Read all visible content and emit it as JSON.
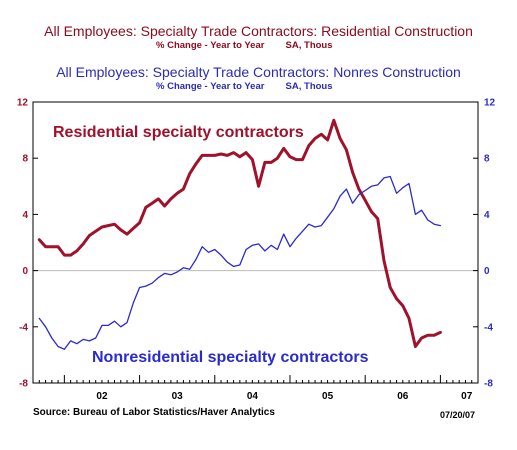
{
  "header": {
    "title_residential": "All Employees: Specialty Trade Contractors: Residential Construction",
    "subtitle_residential": "% Change - Year to Year        SA, Thous",
    "title_nonres": "All Employees: Specialty Trade Contractors: Nonres Construction",
    "subtitle_nonres": "% Change - Year to Year        SA, Thous"
  },
  "footer": {
    "source": "Source:  Bureau of Labor Statistics/Haver Analytics",
    "date": "07/20/07"
  },
  "colors": {
    "residential": "#a0112b",
    "nonresidential": "#2b2bcc",
    "axis": "#000000",
    "zero_line": "#bbbbbb"
  },
  "chart_data": {
    "type": "line",
    "ylim": [
      -8,
      12
    ],
    "yticks": [
      -8,
      -4,
      0,
      4,
      8,
      12
    ],
    "xlim": [
      2001.583,
      2007.5
    ],
    "x_tick_labels": [
      "02",
      "03",
      "04",
      "05",
      "06",
      "07"
    ],
    "grid": false,
    "annotations": [
      {
        "text": "Residential specialty contractors",
        "series": "Residential"
      },
      {
        "text": "Nonresidential specialty contractors",
        "series": "Nonresidential"
      }
    ],
    "series": [
      {
        "name": "Residential",
        "color": "#a0112b",
        "points": [
          [
            2001.667,
            2.2
          ],
          [
            2001.75,
            1.7
          ],
          [
            2001.833,
            1.7
          ],
          [
            2001.917,
            1.7
          ],
          [
            2002.0,
            1.1
          ],
          [
            2002.083,
            1.1
          ],
          [
            2002.167,
            1.4
          ],
          [
            2002.25,
            1.9
          ],
          [
            2002.333,
            2.5
          ],
          [
            2002.417,
            2.8
          ],
          [
            2002.5,
            3.1
          ],
          [
            2002.583,
            3.2
          ],
          [
            2002.667,
            3.3
          ],
          [
            2002.75,
            2.9
          ],
          [
            2002.833,
            2.6
          ],
          [
            2002.917,
            3.0
          ],
          [
            2003.0,
            3.4
          ],
          [
            2003.083,
            4.5
          ],
          [
            2003.167,
            4.8
          ],
          [
            2003.25,
            5.1
          ],
          [
            2003.333,
            4.6
          ],
          [
            2003.417,
            5.1
          ],
          [
            2003.5,
            5.5
          ],
          [
            2003.583,
            5.8
          ],
          [
            2003.667,
            6.9
          ],
          [
            2003.75,
            7.6
          ],
          [
            2003.833,
            8.2
          ],
          [
            2003.917,
            8.2
          ],
          [
            2004.0,
            8.2
          ],
          [
            2004.083,
            8.3
          ],
          [
            2004.167,
            8.2
          ],
          [
            2004.25,
            8.4
          ],
          [
            2004.333,
            8.1
          ],
          [
            2004.417,
            8.4
          ],
          [
            2004.5,
            7.9
          ],
          [
            2004.583,
            6.0
          ],
          [
            2004.667,
            7.7
          ],
          [
            2004.75,
            7.7
          ],
          [
            2004.833,
            8.0
          ],
          [
            2004.917,
            8.7
          ],
          [
            2005.0,
            8.1
          ],
          [
            2005.083,
            7.9
          ],
          [
            2005.167,
            7.9
          ],
          [
            2005.25,
            8.9
          ],
          [
            2005.333,
            9.4
          ],
          [
            2005.417,
            9.7
          ],
          [
            2005.5,
            9.3
          ],
          [
            2005.583,
            10.7
          ],
          [
            2005.667,
            9.4
          ],
          [
            2005.75,
            8.6
          ],
          [
            2005.833,
            7.0
          ],
          [
            2005.917,
            5.8
          ],
          [
            2006.0,
            5.0
          ],
          [
            2006.083,
            4.2
          ],
          [
            2006.167,
            3.7
          ],
          [
            2006.25,
            0.7
          ],
          [
            2006.333,
            -1.2
          ],
          [
            2006.417,
            -2.0
          ],
          [
            2006.5,
            -2.5
          ],
          [
            2006.583,
            -3.4
          ],
          [
            2006.667,
            -5.4
          ],
          [
            2006.75,
            -4.8
          ],
          [
            2006.833,
            -4.6
          ],
          [
            2006.917,
            -4.6
          ],
          [
            2007.0,
            -4.4
          ]
        ]
      },
      {
        "name": "Nonresidential",
        "color": "#2b2bcc",
        "points": [
          [
            2001.667,
            -3.4
          ],
          [
            2001.75,
            -4.0
          ],
          [
            2001.833,
            -4.8
          ],
          [
            2001.917,
            -5.4
          ],
          [
            2002.0,
            -5.6
          ],
          [
            2002.083,
            -5.0
          ],
          [
            2002.167,
            -5.2
          ],
          [
            2002.25,
            -4.9
          ],
          [
            2002.333,
            -5.0
          ],
          [
            2002.417,
            -4.8
          ],
          [
            2002.5,
            -3.9
          ],
          [
            2002.583,
            -3.9
          ],
          [
            2002.667,
            -3.6
          ],
          [
            2002.75,
            -4.0
          ],
          [
            2002.833,
            -3.7
          ],
          [
            2002.917,
            -2.3
          ],
          [
            2003.0,
            -1.2
          ],
          [
            2003.083,
            -1.1
          ],
          [
            2003.167,
            -0.9
          ],
          [
            2003.25,
            -0.5
          ],
          [
            2003.333,
            -0.2
          ],
          [
            2003.417,
            -0.3
          ],
          [
            2003.5,
            -0.1
          ],
          [
            2003.583,
            0.2
          ],
          [
            2003.667,
            0.1
          ],
          [
            2003.75,
            0.8
          ],
          [
            2003.833,
            1.7
          ],
          [
            2003.917,
            1.3
          ],
          [
            2004.0,
            1.5
          ],
          [
            2004.083,
            1.1
          ],
          [
            2004.167,
            0.6
          ],
          [
            2004.25,
            0.3
          ],
          [
            2004.333,
            0.4
          ],
          [
            2004.417,
            1.5
          ],
          [
            2004.5,
            1.8
          ],
          [
            2004.583,
            1.9
          ],
          [
            2004.667,
            1.4
          ],
          [
            2004.75,
            1.8
          ],
          [
            2004.833,
            1.5
          ],
          [
            2004.917,
            2.6
          ],
          [
            2005.0,
            1.7
          ],
          [
            2005.083,
            2.3
          ],
          [
            2005.167,
            2.8
          ],
          [
            2005.25,
            3.3
          ],
          [
            2005.333,
            3.1
          ],
          [
            2005.417,
            3.2
          ],
          [
            2005.5,
            3.8
          ],
          [
            2005.583,
            4.4
          ],
          [
            2005.667,
            5.3
          ],
          [
            2005.75,
            5.8
          ],
          [
            2005.833,
            4.8
          ],
          [
            2005.917,
            5.4
          ],
          [
            2006.0,
            5.7
          ],
          [
            2006.083,
            6.0
          ],
          [
            2006.167,
            6.1
          ],
          [
            2006.25,
            6.6
          ],
          [
            2006.333,
            6.7
          ],
          [
            2006.417,
            5.5
          ],
          [
            2006.5,
            5.9
          ],
          [
            2006.583,
            6.2
          ],
          [
            2006.667,
            4.0
          ],
          [
            2006.75,
            4.3
          ],
          [
            2006.833,
            3.6
          ],
          [
            2006.917,
            3.3
          ],
          [
            2007.0,
            3.2
          ]
        ]
      }
    ]
  }
}
